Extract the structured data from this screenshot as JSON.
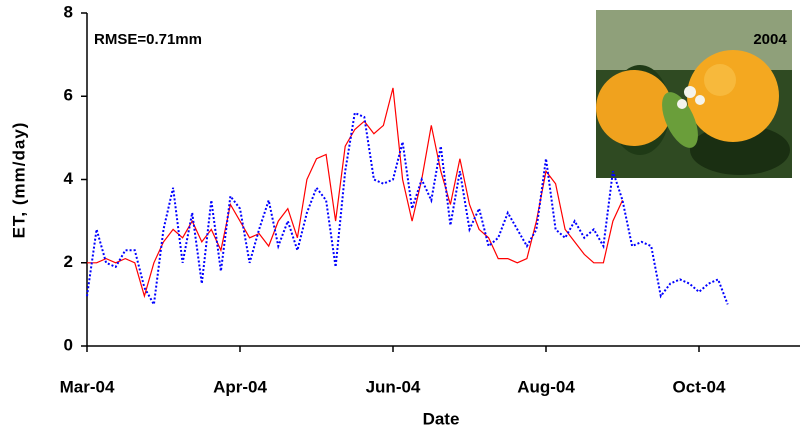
{
  "chart_data": {
    "type": "line",
    "annotation": "RMSE=0.71mm",
    "photo_caption": "2004",
    "x_label": "Date",
    "y_label": "ET, (mm/day)",
    "categories": [
      "Mar-04",
      null,
      null,
      null,
      null,
      null,
      null,
      null,
      null,
      null,
      null,
      null,
      null,
      null,
      null,
      null,
      "Apr-04",
      null,
      null,
      null,
      null,
      null,
      null,
      null,
      null,
      null,
      null,
      null,
      null,
      null,
      null,
      null,
      "Jun-04",
      null,
      null,
      null,
      null,
      null,
      null,
      null,
      null,
      null,
      null,
      null,
      null,
      null,
      null,
      null,
      "Aug-04",
      null,
      null,
      null,
      null,
      null,
      null,
      null,
      null,
      null,
      null,
      null,
      null,
      null,
      null,
      null,
      "Oct-04",
      null,
      null,
      null,
      null,
      null,
      null,
      null,
      null,
      null,
      null
    ],
    "series": [
      {
        "color": "#ff0000",
        "line_style": "solid",
        "values": [
          2.0,
          2.0,
          2.1,
          2.0,
          2.1,
          2.0,
          1.2,
          2.0,
          2.5,
          2.8,
          2.6,
          3.0,
          2.5,
          2.8,
          2.3,
          3.4,
          3.0,
          2.6,
          2.7,
          2.4,
          3.0,
          3.3,
          2.6,
          4.0,
          4.5,
          4.6,
          3.0,
          4.8,
          5.2,
          5.4,
          5.1,
          5.3,
          6.2,
          4.0,
          3.0,
          4.0,
          5.3,
          4.2,
          3.4,
          4.5,
          3.4,
          2.8,
          2.6,
          2.1,
          2.1,
          2.0,
          2.1,
          3.0,
          4.2,
          3.9,
          2.8,
          2.5,
          2.2,
          2.0,
          2.0,
          3.0,
          3.5,
          null,
          null,
          null,
          null,
          null,
          null,
          null,
          null,
          null,
          null,
          null,
          null,
          null,
          null,
          null,
          null,
          null,
          null
        ]
      },
      {
        "color": "#0000ff",
        "line_style": "dotted",
        "values": [
          1.2,
          2.8,
          2.0,
          1.9,
          2.3,
          2.3,
          1.4,
          1.0,
          2.8,
          3.8,
          2.0,
          3.2,
          1.5,
          3.5,
          1.8,
          3.6,
          3.3,
          2.0,
          2.8,
          3.5,
          2.4,
          3.0,
          2.3,
          3.2,
          3.8,
          3.5,
          1.9,
          4.2,
          5.6,
          5.5,
          4.0,
          3.9,
          4.0,
          4.9,
          3.3,
          4.0,
          3.5,
          4.8,
          2.9,
          4.2,
          2.8,
          3.3,
          2.4,
          2.6,
          3.2,
          2.8,
          2.4,
          2.8,
          4.5,
          2.8,
          2.6,
          3.0,
          2.6,
          2.8,
          2.4,
          4.2,
          3.5,
          2.4,
          2.5,
          2.4,
          1.2,
          1.5,
          1.6,
          1.5,
          1.3,
          1.5,
          1.6,
          1.0,
          null,
          null,
          null,
          null,
          null,
          null,
          null
        ]
      }
    ],
    "ylim": [
      0,
      8
    ],
    "yticks": [
      0,
      2,
      4,
      6,
      8
    ],
    "grid": false
  }
}
